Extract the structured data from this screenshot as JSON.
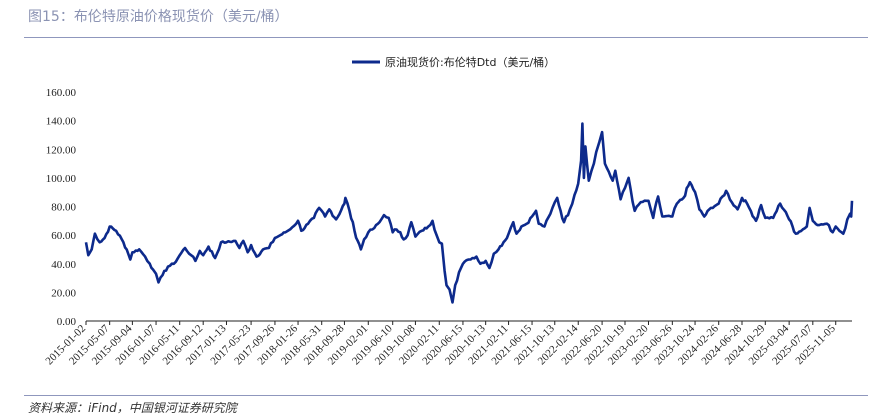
{
  "figure": {
    "title": "图15：布伦特原油价格现货价（美元/桶）",
    "source": "资料来源：iFind，中国银河证券研究院"
  },
  "chart_data": {
    "type": "line",
    "title": "",
    "xlabel": "",
    "ylabel": "",
    "ylim": [
      0,
      160
    ],
    "yticks": [
      "0.00",
      "20.00",
      "40.00",
      "60.00",
      "80.00",
      "100.00",
      "120.00",
      "140.00",
      "160.00"
    ],
    "xticks": [
      "2015-01-02",
      "2015-05-07",
      "2015-09-04",
      "2016-01-07",
      "2016-05-11",
      "2016-09-12",
      "2017-01-13",
      "2017-05-23",
      "2017-09-26",
      "2018-01-26",
      "2018-05-31",
      "2018-09-28",
      "2019-02-01",
      "2019-06-10",
      "2019-10-08",
      "2020-02-11",
      "2020-06-15",
      "2020-10-13",
      "2021-02-11",
      "2021-06-15",
      "2021-10-13",
      "2022-02-14",
      "2022-06-20",
      "2022-10-19",
      "2023-02-20",
      "2023-06-26",
      "2023-10-24",
      "2024-02-26",
      "2024-06-28",
      "2024-10-29",
      "2025-03-04",
      "2025-07-07",
      "2025-11-05"
    ],
    "x_start": "2015-01-02",
    "x_end": "2026-01-30",
    "legend_position": "top-center",
    "color": "#0d2a8c",
    "series": [
      {
        "name": "原油现货价:布伦特Dtd（美元/桶）",
        "points": [
          [
            "2015-01-02",
            55
          ],
          [
            "2015-01-14",
            46
          ],
          [
            "2015-02-01",
            50
          ],
          [
            "2015-02-18",
            61
          ],
          [
            "2015-03-15",
            55
          ],
          [
            "2015-04-10",
            58
          ],
          [
            "2015-05-07",
            66
          ],
          [
            "2015-06-10",
            63
          ],
          [
            "2015-07-10",
            57
          ],
          [
            "2015-08-05",
            50
          ],
          [
            "2015-08-24",
            43
          ],
          [
            "2015-09-04",
            48
          ],
          [
            "2015-10-10",
            50
          ],
          [
            "2015-11-10",
            45
          ],
          [
            "2015-12-05",
            40
          ],
          [
            "2015-12-22",
            36
          ],
          [
            "2016-01-07",
            33
          ],
          [
            "2016-01-20",
            27
          ],
          [
            "2016-02-10",
            32
          ],
          [
            "2016-03-10",
            38
          ],
          [
            "2016-04-10",
            40
          ],
          [
            "2016-05-11",
            46
          ],
          [
            "2016-06-08",
            51
          ],
          [
            "2016-07-10",
            46
          ],
          [
            "2016-08-02",
            42
          ],
          [
            "2016-08-25",
            49
          ],
          [
            "2016-09-12",
            46
          ],
          [
            "2016-10-10",
            52
          ],
          [
            "2016-11-14",
            44
          ],
          [
            "2016-12-15",
            55
          ],
          [
            "2017-01-13",
            55
          ],
          [
            "2017-03-01",
            56
          ],
          [
            "2017-03-22",
            51
          ],
          [
            "2017-04-12",
            56
          ],
          [
            "2017-05-05",
            48
          ],
          [
            "2017-05-23",
            53
          ],
          [
            "2017-06-21",
            45
          ],
          [
            "2017-07-25",
            50
          ],
          [
            "2017-08-25",
            51
          ],
          [
            "2017-09-26",
            58
          ],
          [
            "2017-10-25",
            60
          ],
          [
            "2017-11-20",
            62
          ],
          [
            "2017-12-15",
            64
          ],
          [
            "2018-01-26",
            70
          ],
          [
            "2018-02-12",
            63
          ],
          [
            "2018-03-20",
            68
          ],
          [
            "2018-04-20",
            72
          ],
          [
            "2018-05-17",
            79
          ],
          [
            "2018-05-31",
            77
          ],
          [
            "2018-06-18",
            73
          ],
          [
            "2018-07-10",
            78
          ],
          [
            "2018-08-15",
            71
          ],
          [
            "2018-09-28",
            82
          ],
          [
            "2018-10-03",
            86
          ],
          [
            "2018-10-25",
            77
          ],
          [
            "2018-11-20",
            63
          ],
          [
            "2018-12-24",
            50
          ],
          [
            "2019-01-10",
            57
          ],
          [
            "2019-02-01",
            62
          ],
          [
            "2019-03-05",
            65
          ],
          [
            "2019-04-01",
            69
          ],
          [
            "2019-04-25",
            74
          ],
          [
            "2019-05-20",
            72
          ],
          [
            "2019-06-10",
            62
          ],
          [
            "2019-06-20",
            64
          ],
          [
            "2019-07-20",
            62
          ],
          [
            "2019-08-07",
            57
          ],
          [
            "2019-08-28",
            60
          ],
          [
            "2019-09-16",
            69
          ],
          [
            "2019-10-08",
            59
          ],
          [
            "2019-11-10",
            63
          ],
          [
            "2019-12-15",
            66
          ],
          [
            "2020-01-06",
            70
          ],
          [
            "2020-01-28",
            60
          ],
          [
            "2020-02-11",
            55
          ],
          [
            "2020-02-25",
            54
          ],
          [
            "2020-03-10",
            35
          ],
          [
            "2020-03-20",
            25
          ],
          [
            "2020-04-05",
            22
          ],
          [
            "2020-04-21",
            13
          ],
          [
            "2020-05-05",
            25
          ],
          [
            "2020-05-25",
            34
          ],
          [
            "2020-06-15",
            40
          ],
          [
            "2020-07-15",
            43
          ],
          [
            "2020-08-25",
            45
          ],
          [
            "2020-09-15",
            40
          ],
          [
            "2020-10-13",
            42
          ],
          [
            "2020-11-02",
            37
          ],
          [
            "2020-11-25",
            47
          ],
          [
            "2020-12-20",
            50
          ],
          [
            "2021-01-15",
            55
          ],
          [
            "2021-02-11",
            61
          ],
          [
            "2021-03-08",
            69
          ],
          [
            "2021-03-25",
            61
          ],
          [
            "2021-04-20",
            66
          ],
          [
            "2021-05-18",
            68
          ],
          [
            "2021-06-15",
            73
          ],
          [
            "2021-07-06",
            77
          ],
          [
            "2021-07-20",
            68
          ],
          [
            "2021-08-20",
            66
          ],
          [
            "2021-09-20",
            75
          ],
          [
            "2021-10-13",
            83
          ],
          [
            "2021-10-26",
            86
          ],
          [
            "2021-12-01",
            69
          ],
          [
            "2022-01-01",
            78
          ],
          [
            "2022-01-25",
            88
          ],
          [
            "2022-02-14",
            96
          ],
          [
            "2022-03-01",
            112
          ],
          [
            "2022-03-08",
            138
          ],
          [
            "2022-03-16",
            100
          ],
          [
            "2022-03-24",
            122
          ],
          [
            "2022-04-11",
            98
          ],
          [
            "2022-04-25",
            105
          ],
          [
            "2022-05-20",
            118
          ],
          [
            "2022-06-05",
            125
          ],
          [
            "2022-06-20",
            132
          ],
          [
            "2022-07-05",
            110
          ],
          [
            "2022-07-15",
            107
          ],
          [
            "2022-08-15",
            98
          ],
          [
            "2022-08-29",
            105
          ],
          [
            "2022-09-26",
            85
          ],
          [
            "2022-10-19",
            93
          ],
          [
            "2022-11-07",
            100
          ],
          [
            "2022-12-09",
            77
          ],
          [
            "2023-01-10",
            83
          ],
          [
            "2023-02-20",
            84
          ],
          [
            "2023-03-17",
            72
          ],
          [
            "2023-04-12",
            87
          ],
          [
            "2023-05-04",
            73
          ],
          [
            "2023-06-26",
            73
          ],
          [
            "2023-07-20",
            82
          ],
          [
            "2023-08-24",
            86
          ],
          [
            "2023-09-27",
            97
          ],
          [
            "2023-10-24",
            90
          ],
          [
            "2023-11-16",
            78
          ],
          [
            "2023-12-12",
            73
          ],
          [
            "2024-01-15",
            79
          ],
          [
            "2024-02-26",
            82
          ],
          [
            "2024-04-05",
            91
          ],
          [
            "2024-05-05",
            83
          ],
          [
            "2024-06-05",
            78
          ],
          [
            "2024-06-28",
            86
          ],
          [
            "2024-07-25",
            82
          ],
          [
            "2024-08-05",
            79
          ],
          [
            "2024-09-10",
            70
          ],
          [
            "2024-10-07",
            81
          ],
          [
            "2024-10-29",
            72
          ],
          [
            "2024-12-10",
            72
          ],
          [
            "2025-01-15",
            82
          ],
          [
            "2025-02-15",
            76
          ],
          [
            "2025-03-04",
            71
          ],
          [
            "2025-04-08",
            61
          ],
          [
            "2025-05-15",
            64
          ],
          [
            "2025-06-05",
            66
          ],
          [
            "2025-06-20",
            79
          ],
          [
            "2025-07-07",
            70
          ],
          [
            "2025-08-10",
            67
          ],
          [
            "2025-09-20",
            68
          ],
          [
            "2025-10-20",
            62
          ],
          [
            "2025-11-05",
            66
          ],
          [
            "2025-12-15",
            61
          ],
          [
            "2026-01-05",
            71
          ],
          [
            "2026-01-20",
            75
          ],
          [
            "2026-01-26",
            73
          ],
          [
            "2026-01-30",
            84
          ]
        ]
      }
    ]
  }
}
